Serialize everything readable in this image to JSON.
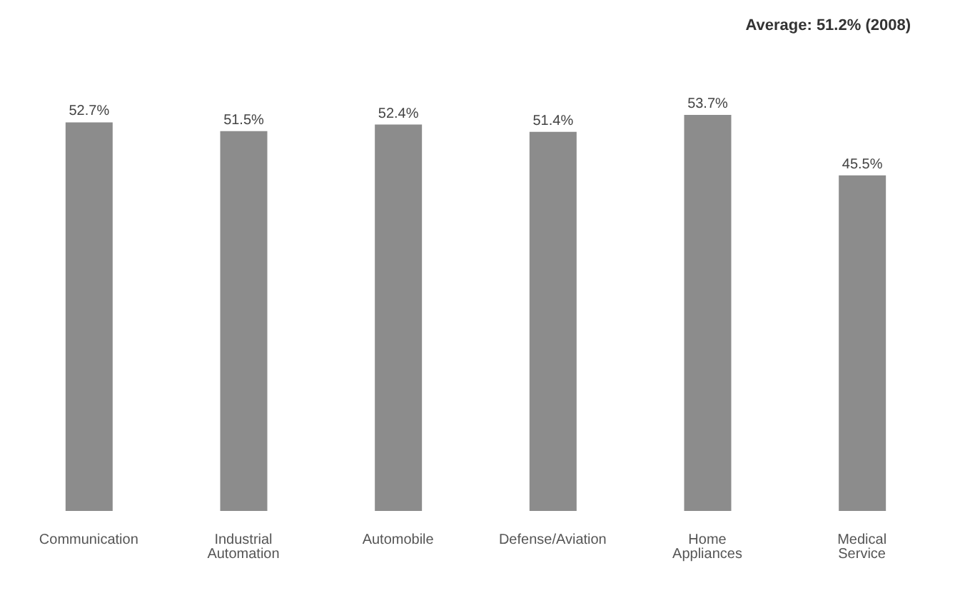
{
  "chart_data": {
    "type": "bar",
    "annotations": [
      "Average: 51.2% (2008)"
    ],
    "categories": [
      "Communication",
      "Industrial Automation",
      "Automobile",
      "Defense/Aviation",
      "Home Appliances",
      "Medical Service"
    ],
    "values": [
      52.7,
      51.5,
      52.4,
      51.4,
      53.7,
      45.5
    ],
    "value_labels": [
      "52.7%",
      "51.5%",
      "52.4%",
      "51.4%",
      "53.7%",
      "45.5%"
    ],
    "color": "#8c8c8c",
    "tick_labels": "x"
  }
}
